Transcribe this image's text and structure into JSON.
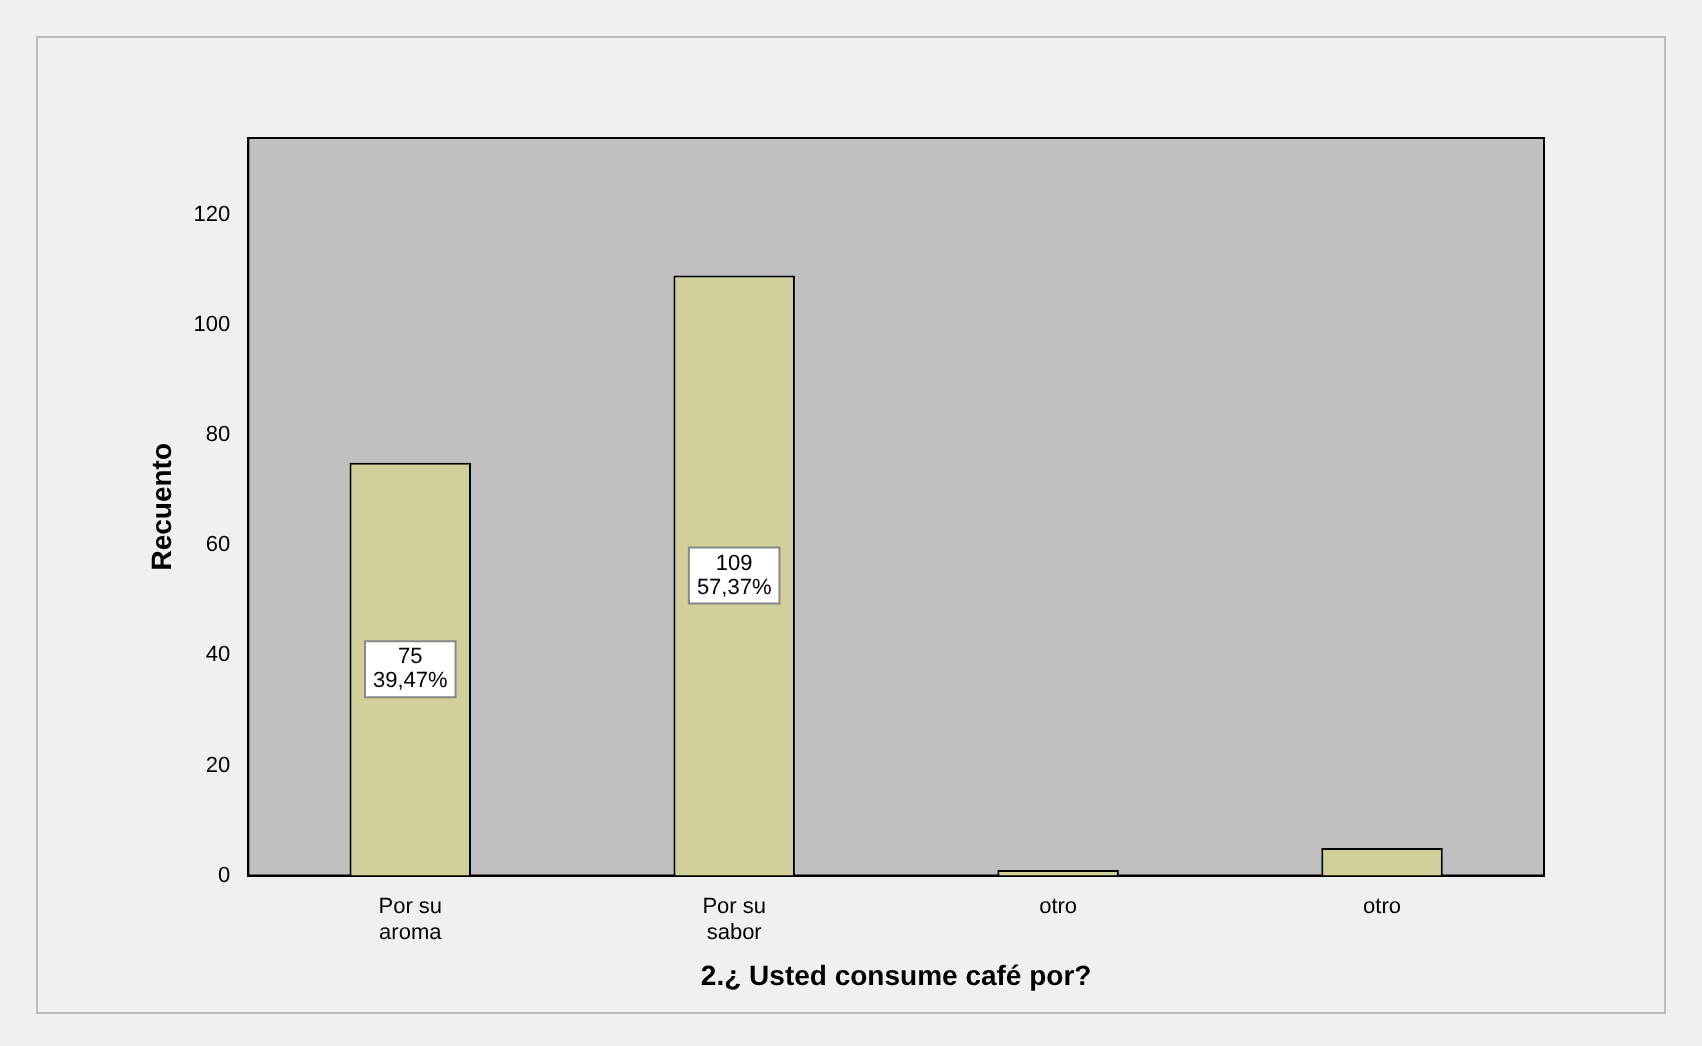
{
  "chart_data": {
    "type": "bar",
    "xlabel": "2.¿ Usted consume café por?",
    "ylabel": "Recuento",
    "categories": [
      "Por su aroma",
      "Por su sabor",
      "otro",
      "otro"
    ],
    "values": [
      75,
      109,
      1,
      5
    ],
    "color": "#d3cf9a",
    "value_labels": [
      "75\n39,47%",
      "109\n57,37%",
      null,
      null
    ],
    "ylim": [
      0,
      134
    ],
    "yticks": [
      0,
      20,
      40,
      60,
      80,
      100,
      120
    ],
    "grid": false,
    "legend": false
  }
}
